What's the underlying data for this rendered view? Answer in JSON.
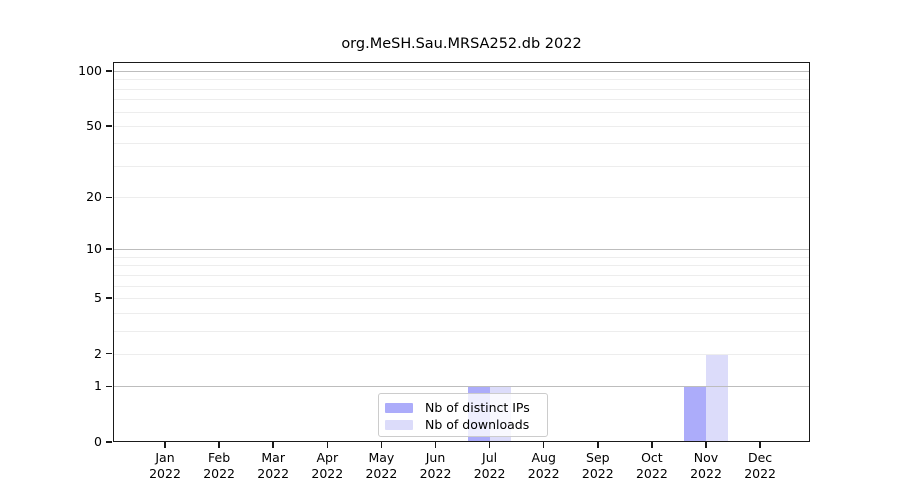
{
  "figure": {
    "title": "org.MeSH.Sau.MRSA252.db 2022",
    "background": "#ffffff"
  },
  "chart_data": {
    "type": "bar",
    "title": "org.MeSH.Sau.MRSA252.db 2022",
    "xlabel": "",
    "ylabel": "",
    "categories": [
      "Jan 2022",
      "Feb 2022",
      "Mar 2022",
      "Apr 2022",
      "May 2022",
      "Jun 2022",
      "Jul 2022",
      "Aug 2022",
      "Sep 2022",
      "Oct 2022",
      "Nov 2022",
      "Dec 2022"
    ],
    "series": [
      {
        "name": "Nb of distinct IPs",
        "color": "#acacfa",
        "values": [
          0,
          0,
          0,
          0,
          0,
          0,
          1,
          0,
          0,
          0,
          1,
          0
        ]
      },
      {
        "name": "Nb of downloads",
        "color": "#dcdcfa",
        "values": [
          0,
          0,
          0,
          0,
          0,
          0,
          1,
          0,
          0,
          0,
          2,
          0
        ]
      }
    ],
    "yscale": "log1p",
    "ylim": [
      0,
      112
    ],
    "y_ticks": [
      0,
      1,
      2,
      5,
      10,
      20,
      50,
      100
    ],
    "grid": {
      "on": true,
      "major_values": [
        1,
        10,
        100
      ],
      "minor_values": [
        2,
        3,
        4,
        5,
        6,
        7,
        8,
        9,
        20,
        30,
        40,
        50,
        60,
        70,
        80,
        90
      ],
      "major_color": "#bdbdbd",
      "minor_color": "#ededed"
    },
    "legend_position": "lower center"
  },
  "legend": {
    "items": [
      {
        "label": "Nb of distinct IPs",
        "color": "#acacfa"
      },
      {
        "label": "Nb of downloads",
        "color": "#dcdcfa"
      }
    ]
  }
}
